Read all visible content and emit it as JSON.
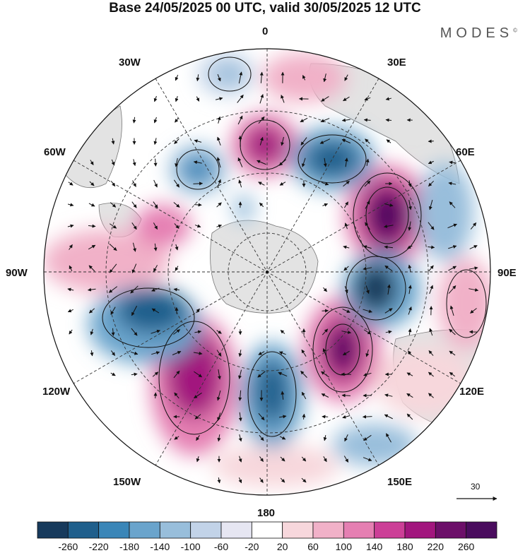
{
  "title": "Base 24/05/2025 00 UTC, valid 30/05/2025 12 UTC",
  "brand": "MODES",
  "brand_mark": "©",
  "longitude_labels": [
    "0",
    "30E",
    "60E",
    "90E",
    "120E",
    "150E",
    "180",
    "150W",
    "120W",
    "90W",
    "60W",
    "30W"
  ],
  "reference_vector": {
    "value": "30"
  },
  "colorbar": {
    "ticks": [
      "-260",
      "-220",
      "-180",
      "-140",
      "-100",
      "-60",
      "-20",
      "20",
      "60",
      "100",
      "140",
      "180",
      "220",
      "260"
    ],
    "colors": [
      "#173a5c",
      "#1f5f8c",
      "#3a86b8",
      "#6aa4cc",
      "#98bedb",
      "#c2d3e8",
      "#e6e6f2",
      "#ffffff",
      "#f7d7dc",
      "#f1b1c8",
      "#e57fb2",
      "#cc3f97",
      "#a2167e",
      "#6c0f69",
      "#4a0c5e"
    ]
  },
  "colors": {
    "land": "#e3e3e3",
    "coast": "#666666",
    "grid": "#333333"
  }
}
